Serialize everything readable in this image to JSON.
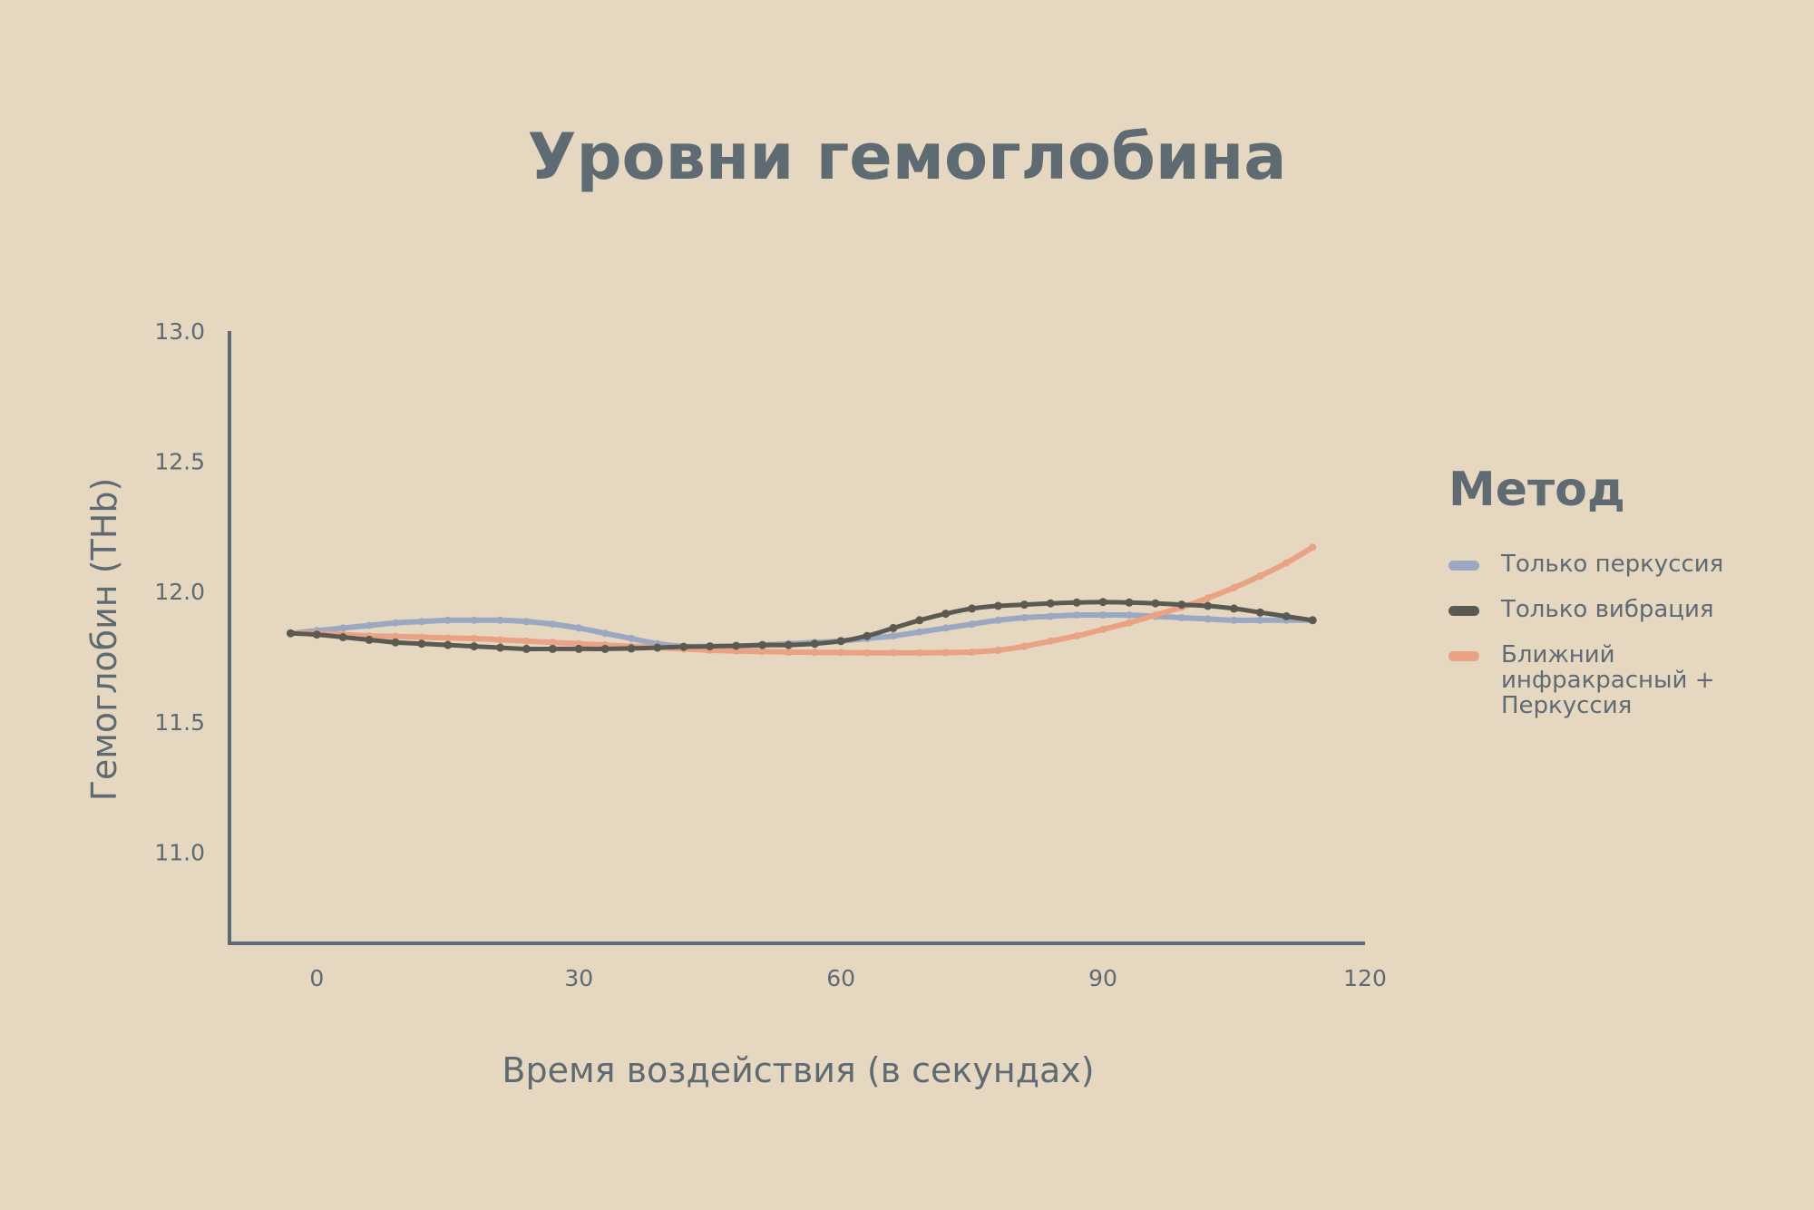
{
  "chart_data": {
    "type": "line",
    "title": "Уровни гемоглобина",
    "xlabel": "Время воздействия (в секундах)",
    "ylabel": "Гемоглобин (THb)",
    "xlim": [
      -10,
      120
    ],
    "ylim": [
      10.65,
      13.0
    ],
    "xticks": [
      0,
      30,
      60,
      90,
      120
    ],
    "xtick_labels": [
      "0",
      "30",
      "60",
      "90",
      "120"
    ],
    "yticks": [
      11.0,
      11.5,
      12.0,
      12.5,
      13.0
    ],
    "ytick_labels": [
      "11.0",
      "11.5",
      "12.0",
      "12.5",
      "13.0"
    ],
    "grid": false,
    "legend": {
      "title": "Метод",
      "position": "right"
    },
    "x": [
      -3,
      0,
      3,
      6,
      9,
      12,
      15,
      18,
      21,
      24,
      27,
      30,
      33,
      36,
      39,
      42,
      45,
      48,
      51,
      54,
      57,
      60,
      63,
      66,
      69,
      72,
      75,
      78,
      81,
      84,
      87,
      90,
      93,
      96,
      99,
      102,
      105,
      108,
      111,
      114
    ],
    "series": [
      {
        "name": "Только перкуссия",
        "color": "#9aa8c1",
        "values": [
          11.84,
          11.85,
          11.86,
          11.87,
          11.88,
          11.885,
          11.89,
          11.89,
          11.89,
          11.885,
          11.875,
          11.86,
          11.84,
          11.82,
          11.8,
          11.79,
          11.79,
          11.79,
          11.795,
          11.8,
          11.805,
          11.81,
          11.82,
          11.83,
          11.845,
          11.86,
          11.875,
          11.89,
          11.9,
          11.905,
          11.91,
          11.91,
          11.91,
          11.905,
          11.9,
          11.895,
          11.89,
          11.89,
          11.89,
          11.89
        ]
      },
      {
        "name": "Только вибрация",
        "color": "#5b5a52",
        "values": [
          11.84,
          11.835,
          11.825,
          11.815,
          11.805,
          11.8,
          11.795,
          11.79,
          11.785,
          11.78,
          11.78,
          11.78,
          11.78,
          11.782,
          11.785,
          11.788,
          11.79,
          11.792,
          11.795,
          11.795,
          11.8,
          11.81,
          11.83,
          11.86,
          11.89,
          11.915,
          11.935,
          11.945,
          11.95,
          11.955,
          11.958,
          11.96,
          11.958,
          11.955,
          11.95,
          11.945,
          11.935,
          11.92,
          11.905,
          11.89
        ]
      },
      {
        "name": "Ближний инфракрасный + Перкуссия",
        "color": "#e9a283",
        "values": [
          11.84,
          11.84,
          11.835,
          11.83,
          11.828,
          11.825,
          11.822,
          11.82,
          11.815,
          11.81,
          11.805,
          11.8,
          11.795,
          11.79,
          11.785,
          11.78,
          11.775,
          11.772,
          11.77,
          11.768,
          11.767,
          11.766,
          11.765,
          11.765,
          11.765,
          11.766,
          11.768,
          11.775,
          11.79,
          11.81,
          11.83,
          11.855,
          11.88,
          11.91,
          11.94,
          11.975,
          12.015,
          12.06,
          12.11,
          12.17
        ]
      }
    ]
  }
}
